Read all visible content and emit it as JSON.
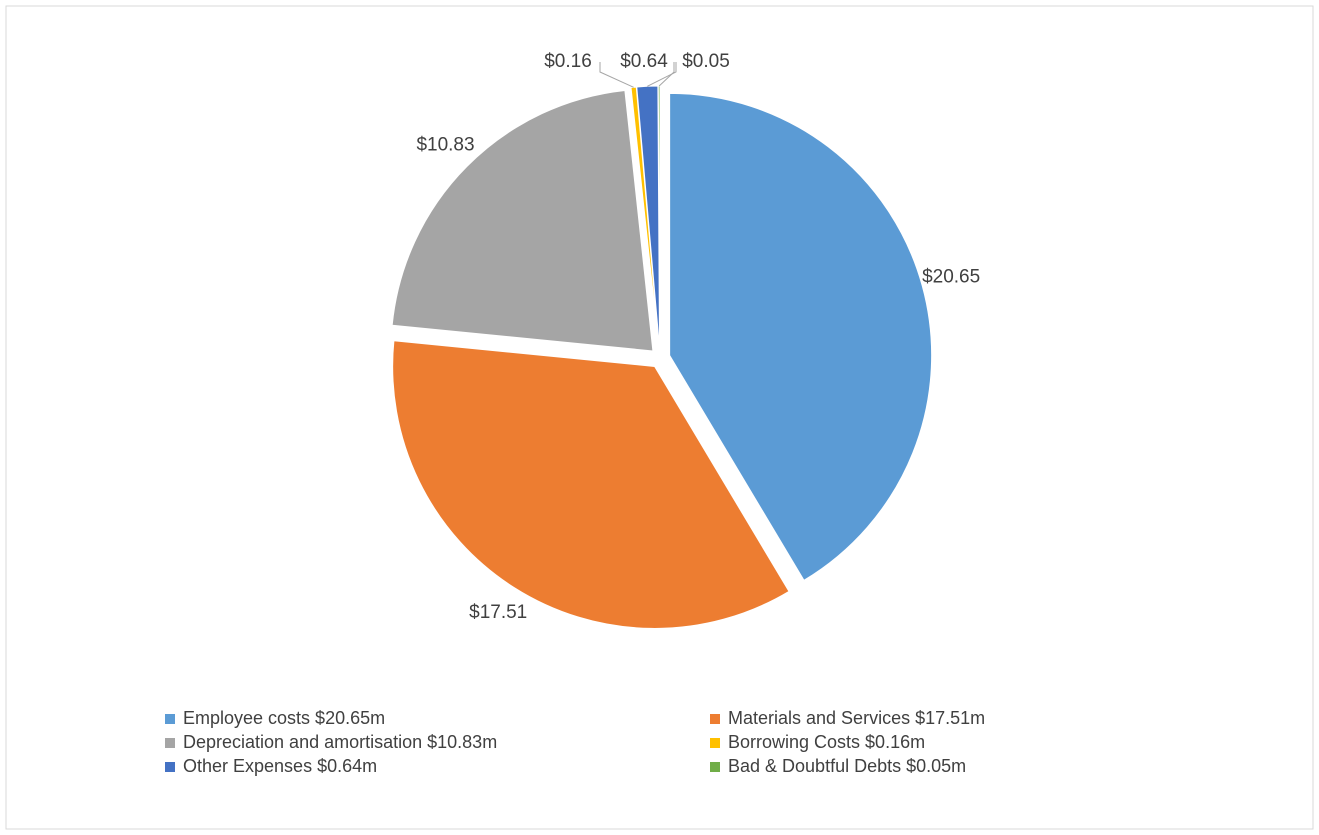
{
  "chart_data": {
    "type": "pie",
    "categories": [
      "Employee costs  $20.65m",
      "Materials and Services  $17.51m",
      "Depreciation and amortisation  $10.83m",
      "Borrowing Costs  $0.16m",
      "Other Expenses  $0.64m",
      "Bad & Doubtful Debts  $0.05m"
    ],
    "values": [
      20.65,
      17.51,
      10.83,
      0.16,
      0.64,
      0.05
    ],
    "value_labels": [
      "$20.65",
      "$17.51",
      "$10.83",
      "$0.16",
      "$0.64",
      "$0.05"
    ],
    "colors": [
      "#5b9bd5",
      "#ed7d31",
      "#a5a5a5",
      "#ffc000",
      "#4472c4",
      "#70ad47"
    ],
    "legend": "bottom"
  }
}
